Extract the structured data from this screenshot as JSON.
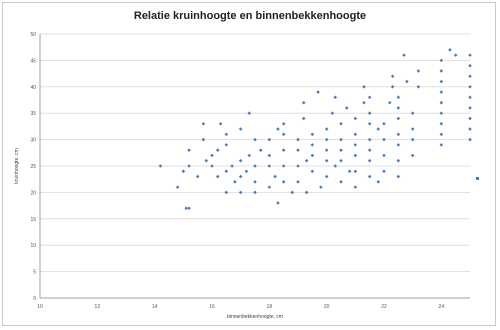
{
  "chart_data": {
    "type": "scatter",
    "title": "Relatie kruinhoogte en binnenbekkenhoogte",
    "xlabel": "binnenbekkenhoogte, cm",
    "ylabel": "kruinhoogte, cm",
    "xlim": [
      10,
      25
    ],
    "ylim": [
      0,
      50
    ],
    "xticks": [
      "10",
      "11",
      "12",
      "13",
      "14",
      "15",
      "16",
      "17",
      "18",
      "19",
      "20",
      "21",
      "22",
      "23",
      "24",
      "25"
    ],
    "yticks": [
      "0",
      "5",
      "10",
      "15",
      "20",
      "25",
      "30",
      "35",
      "40",
      "45",
      "50"
    ],
    "grid": "horizontal",
    "legend": "right",
    "color": "#4a7ebb",
    "series": [
      {
        "name": "",
        "points": [
          [
            14.2,
            25
          ],
          [
            14.8,
            21
          ],
          [
            15,
            24
          ],
          [
            15.1,
            17
          ],
          [
            15.2,
            17
          ],
          [
            15.2,
            25
          ],
          [
            15.2,
            28
          ],
          [
            15.5,
            23
          ],
          [
            15.7,
            30
          ],
          [
            15.7,
            33
          ],
          [
            15.8,
            26
          ],
          [
            16,
            25
          ],
          [
            16,
            27
          ],
          [
            16.2,
            23
          ],
          [
            16.2,
            28
          ],
          [
            16.3,
            33
          ],
          [
            16.5,
            20
          ],
          [
            16.5,
            24
          ],
          [
            16.5,
            29
          ],
          [
            16.5,
            31
          ],
          [
            16.7,
            25
          ],
          [
            16.8,
            22
          ],
          [
            17,
            20
          ],
          [
            17,
            23
          ],
          [
            17,
            26
          ],
          [
            17,
            32
          ],
          [
            17.2,
            24
          ],
          [
            17.3,
            35
          ],
          [
            17.3,
            27
          ],
          [
            17.5,
            20
          ],
          [
            17.5,
            22
          ],
          [
            17.5,
            25
          ],
          [
            17.5,
            30
          ],
          [
            17.7,
            28
          ],
          [
            18,
            21
          ],
          [
            18,
            25
          ],
          [
            18,
            27
          ],
          [
            18,
            30
          ],
          [
            18.2,
            23
          ],
          [
            18.3,
            18
          ],
          [
            18.3,
            32
          ],
          [
            18.5,
            22
          ],
          [
            18.5,
            25
          ],
          [
            18.5,
            28
          ],
          [
            18.5,
            31
          ],
          [
            18.5,
            33
          ],
          [
            18.8,
            20
          ],
          [
            19,
            22
          ],
          [
            19,
            25
          ],
          [
            19,
            28
          ],
          [
            19,
            30
          ],
          [
            19.2,
            34
          ],
          [
            19.2,
            37
          ],
          [
            19.3,
            20
          ],
          [
            19.3,
            26
          ],
          [
            19.5,
            24
          ],
          [
            19.5,
            27
          ],
          [
            19.5,
            29
          ],
          [
            19.5,
            31
          ],
          [
            19.7,
            39
          ],
          [
            19.8,
            21
          ],
          [
            20,
            23
          ],
          [
            20,
            26
          ],
          [
            20,
            28
          ],
          [
            20,
            30
          ],
          [
            20,
            32
          ],
          [
            20.2,
            35
          ],
          [
            20.3,
            38
          ],
          [
            20.3,
            25
          ],
          [
            20.5,
            22
          ],
          [
            20.5,
            26
          ],
          [
            20.5,
            28
          ],
          [
            20.5,
            30
          ],
          [
            20.5,
            33
          ],
          [
            20.7,
            36
          ],
          [
            20.8,
            24
          ],
          [
            21,
            21
          ],
          [
            21,
            24
          ],
          [
            21,
            27
          ],
          [
            21,
            29
          ],
          [
            21,
            31
          ],
          [
            21,
            34
          ],
          [
            21.3,
            40
          ],
          [
            21.3,
            37
          ],
          [
            21.5,
            23
          ],
          [
            21.5,
            26
          ],
          [
            21.5,
            28
          ],
          [
            21.5,
            30
          ],
          [
            21.5,
            33
          ],
          [
            21.5,
            35
          ],
          [
            21.5,
            38
          ],
          [
            21.8,
            22
          ],
          [
            21.8,
            32
          ],
          [
            22,
            24
          ],
          [
            22,
            27
          ],
          [
            22,
            30
          ],
          [
            22,
            33
          ],
          [
            22.2,
            37
          ],
          [
            22.3,
            40
          ],
          [
            22.3,
            42
          ],
          [
            22.5,
            23
          ],
          [
            22.5,
            26
          ],
          [
            22.5,
            29
          ],
          [
            22.5,
            31
          ],
          [
            22.5,
            34
          ],
          [
            22.5,
            36
          ],
          [
            22.5,
            38
          ],
          [
            22.7,
            46
          ],
          [
            22.8,
            41
          ],
          [
            23,
            27
          ],
          [
            23,
            30
          ],
          [
            23,
            32
          ],
          [
            23,
            35
          ],
          [
            23.2,
            40
          ],
          [
            23.2,
            43
          ],
          [
            24,
            29
          ],
          [
            24,
            31
          ],
          [
            24,
            33
          ],
          [
            24,
            35
          ],
          [
            24,
            37
          ],
          [
            24,
            39
          ],
          [
            24,
            41
          ],
          [
            24,
            43
          ],
          [
            24,
            45
          ],
          [
            24.3,
            47
          ],
          [
            24.5,
            46
          ],
          [
            25,
            30
          ],
          [
            25,
            32
          ],
          [
            25,
            34
          ],
          [
            25,
            36
          ],
          [
            25,
            38
          ],
          [
            25,
            40
          ],
          [
            25,
            42
          ],
          [
            25,
            44
          ],
          [
            25,
            46
          ]
        ]
      }
    ]
  }
}
